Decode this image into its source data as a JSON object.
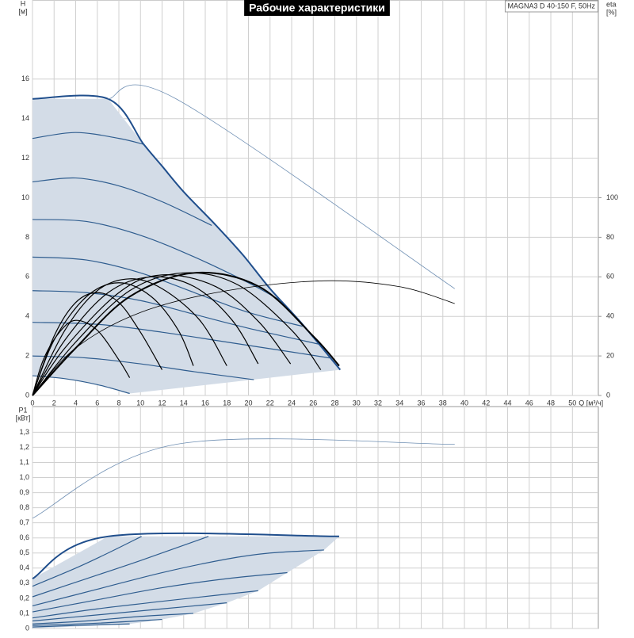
{
  "chart_data": [
    {
      "type": "line",
      "title": "Рабочие характеристики",
      "model": "MAGNA3 D 40-150 F, 50Hz",
      "ylabel": "H",
      "yunit": "[м]",
      "y2label": "eta",
      "y2unit": "[%]",
      "xlabel": "Q [м³/ч]",
      "xlim": [
        0,
        52.4
      ],
      "xticks": [
        0,
        2,
        4,
        6,
        8,
        10,
        12,
        14,
        16,
        18,
        20,
        22,
        24,
        26,
        28,
        30,
        32,
        34,
        36,
        38,
        40,
        42,
        44,
        46,
        48,
        50
      ],
      "ylim": [
        0,
        20
      ],
      "yticks": [
        0,
        2,
        4,
        6,
        8,
        10,
        12,
        14,
        16
      ],
      "y2lim": [
        0,
        200
      ],
      "y2ticks": [
        0,
        20,
        40,
        60,
        80,
        100
      ],
      "grid": true,
      "shade": {
        "color": "#d3dce7",
        "x": [
          0,
          7,
          10.3,
          12,
          14,
          17,
          19.5,
          22,
          25,
          28.5,
          9,
          6,
          3,
          0
        ],
        "values": [
          15,
          15,
          12.7,
          11.6,
          10.3,
          8.6,
          7.1,
          5.4,
          3.6,
          1.3,
          0.1,
          0.55,
          0.85,
          1.0
        ]
      },
      "series": [
        {
          "color": "#1f4e8c",
          "width": 2,
          "x": [
            0,
            7,
            10.3,
            12,
            14,
            17,
            19.5,
            22,
            25,
            28.5
          ],
          "values": [
            15,
            15,
            12.7,
            11.6,
            10.3,
            8.6,
            7.1,
            5.4,
            3.6,
            1.3
          ]
        },
        {
          "color": "#2f5d8f",
          "width": 1.2,
          "x": [
            0,
            4,
            8,
            10.3
          ],
          "values": [
            13,
            13.3,
            13.0,
            12.7
          ]
        },
        {
          "color": "#2f5d8f",
          "width": 1.2,
          "x": [
            0,
            4,
            8,
            12,
            16.6
          ],
          "values": [
            10.8,
            11.0,
            10.6,
            9.8,
            8.6
          ]
        },
        {
          "color": "#2f5d8f",
          "width": 1.2,
          "x": [
            0,
            5,
            10,
            15,
            20,
            23
          ],
          "values": [
            8.9,
            8.8,
            8.1,
            7.0,
            5.7,
            4.8
          ]
        },
        {
          "color": "#2f5d8f",
          "width": 1.2,
          "x": [
            0,
            5,
            10,
            15,
            20,
            25
          ],
          "values": [
            7.0,
            6.85,
            6.2,
            5.2,
            4.2,
            3.5
          ]
        },
        {
          "color": "#2f5d8f",
          "width": 1.2,
          "x": [
            0,
            5,
            10,
            15,
            20,
            26.5
          ],
          "values": [
            5.3,
            5.2,
            4.8,
            4.1,
            3.4,
            2.6
          ]
        },
        {
          "color": "#2f5d8f",
          "width": 1.2,
          "x": [
            0,
            6,
            12,
            18,
            24,
            27.5
          ],
          "values": [
            3.7,
            3.6,
            3.2,
            2.7,
            2.2,
            1.9
          ]
        },
        {
          "color": "#2f5d8f",
          "width": 1.2,
          "x": [
            0,
            5,
            10,
            15,
            20.5
          ],
          "values": [
            2.0,
            1.9,
            1.6,
            1.2,
            0.8
          ]
        },
        {
          "color": "#2f5d8f",
          "width": 1.2,
          "x": [
            0,
            3,
            6,
            9
          ],
          "values": [
            1.0,
            0.85,
            0.55,
            0.1
          ]
        },
        {
          "color": "#6f8fb3",
          "width": 0.8,
          "x": [
            7,
            13.3,
            39.1
          ],
          "values": [
            15,
            15,
            5.4
          ]
        },
        {
          "color": "#000000",
          "width": 0.8,
          "axis": "y2",
          "x": [
            0,
            4,
            10,
            18,
            27,
            34,
            39.1
          ],
          "values": [
            0,
            24,
            42,
            53,
            58,
            55,
            46.5
          ]
        },
        {
          "color": "#000000",
          "width": 1.2,
          "axis": "y2",
          "x": [
            0,
            1,
            2.5,
            4,
            6,
            8,
            9
          ],
          "values": [
            0,
            18,
            32,
            38,
            33,
            18,
            9
          ]
        },
        {
          "color": "#000000",
          "width": 1.2,
          "axis": "y2",
          "x": [
            0,
            2,
            4,
            6,
            8,
            10,
            12
          ],
          "values": [
            0,
            30,
            47,
            52,
            47,
            32,
            13
          ]
        },
        {
          "color": "#000000",
          "width": 1.2,
          "axis": "y2",
          "x": [
            0,
            2,
            5,
            8,
            11,
            13.5,
            14.9
          ],
          "values": [
            0,
            28,
            50,
            57,
            50,
            33,
            15
          ]
        },
        {
          "color": "#000000",
          "width": 1.2,
          "axis": "y2",
          "x": [
            0,
            3,
            6,
            9,
            12,
            15.5,
            18
          ],
          "values": [
            0,
            33,
            53,
            59,
            54,
            38,
            15
          ]
        },
        {
          "color": "#000000",
          "width": 1.2,
          "axis": "y2",
          "x": [
            0,
            3,
            7,
            11,
            15,
            18.5,
            20.9
          ],
          "values": [
            0,
            28,
            52,
            60,
            55,
            38,
            16
          ]
        },
        {
          "color": "#000000",
          "width": 1.2,
          "axis": "y2",
          "x": [
            0,
            3,
            8,
            12,
            17,
            21,
            23.9
          ],
          "values": [
            0,
            24,
            52,
            61,
            55,
            37,
            16
          ]
        },
        {
          "color": "#000000",
          "width": 1.2,
          "axis": "y2",
          "x": [
            0,
            4,
            9,
            14,
            19,
            24,
            26.7
          ],
          "values": [
            0,
            27,
            53,
            62,
            56,
            33,
            13
          ]
        },
        {
          "color": "#000000",
          "width": 2,
          "axis": "y2",
          "x": [
            0,
            4,
            9,
            15,
            21,
            26,
            28.4
          ],
          "values": [
            0,
            24,
            50,
            62,
            55,
            30,
            15
          ]
        }
      ]
    },
    {
      "type": "line",
      "ylabel": "P1",
      "yunit": "[кВт]",
      "xlim": [
        0,
        52.4
      ],
      "xticks": [
        0,
        2,
        4,
        6,
        8,
        10,
        12,
        14,
        16,
        18,
        20,
        22,
        24,
        26,
        28,
        30,
        32,
        34,
        36,
        38,
        40,
        42,
        44,
        46,
        48,
        50
      ],
      "ylim": [
        0,
        1.47
      ],
      "grid": true,
      "yticks": [
        0,
        {
          "value": 0.1,
          "label": "0,1"
        },
        {
          "value": 0.2,
          "label": "0,2"
        },
        {
          "value": 0.3,
          "label": "0,3"
        },
        {
          "value": 0.4,
          "label": "0,4"
        },
        {
          "value": 0.5,
          "label": "0,5"
        },
        {
          "value": 0.6,
          "label": "0,6"
        },
        {
          "value": 0.7,
          "label": "0,7"
        },
        {
          "value": 0.8,
          "label": "0,8"
        },
        {
          "value": 0.9,
          "label": "0,9"
        },
        {
          "value": 1.0,
          "label": "1,0"
        },
        {
          "value": 1.1,
          "label": "1,1"
        },
        {
          "value": 1.2,
          "label": "1,2"
        },
        {
          "value": 1.3,
          "label": "1,3"
        }
      ],
      "shade": {
        "color": "#d3dce7",
        "x": [
          0,
          7,
          28.4,
          27,
          23.6,
          20.9,
          18,
          14.9,
          12,
          9,
          0
        ],
        "values": [
          0.33,
          0.61,
          0.61,
          0.52,
          0.37,
          0.25,
          0.17,
          0.1,
          0.06,
          0.03,
          0
        ]
      },
      "series": [
        {
          "color": "#6f8fb3",
          "width": 0.8,
          "x": [
            0,
            13.3,
            39.1
          ],
          "values": [
            0.73,
            1.22,
            1.22
          ]
        },
        {
          "color": "#1f4e8c",
          "width": 2,
          "x": [
            0,
            7,
            28.4
          ],
          "values": [
            0.33,
            0.61,
            0.61
          ]
        },
        {
          "color": "#2f5d8f",
          "width": 1.2,
          "x": [
            0,
            4,
            7,
            10.1
          ],
          "values": [
            0.28,
            0.4,
            0.5,
            0.61
          ]
        },
        {
          "color": "#2f5d8f",
          "width": 1.2,
          "x": [
            0,
            5,
            10,
            16.3
          ],
          "values": [
            0.21,
            0.33,
            0.45,
            0.61
          ]
        },
        {
          "color": "#2f5d8f",
          "width": 1.2,
          "x": [
            0,
            6,
            12,
            18,
            22,
            27
          ],
          "values": [
            0.15,
            0.26,
            0.37,
            0.46,
            0.5,
            0.52
          ]
        },
        {
          "color": "#2f5d8f",
          "width": 1.2,
          "x": [
            0,
            6,
            12,
            18,
            23.6
          ],
          "values": [
            0.11,
            0.19,
            0.27,
            0.33,
            0.37
          ]
        },
        {
          "color": "#2f5d8f",
          "width": 1.2,
          "x": [
            0,
            6,
            12,
            17,
            20.9
          ],
          "values": [
            0.07,
            0.13,
            0.18,
            0.22,
            0.25
          ]
        },
        {
          "color": "#2f5d8f",
          "width": 1.2,
          "x": [
            0,
            6,
            12,
            18
          ],
          "values": [
            0.05,
            0.09,
            0.13,
            0.17
          ]
        },
        {
          "color": "#2f5d8f",
          "width": 1.2,
          "x": [
            0,
            5,
            10,
            14.9
          ],
          "values": [
            0.03,
            0.05,
            0.08,
            0.1
          ]
        },
        {
          "color": "#2f5d8f",
          "width": 1.2,
          "x": [
            0,
            6,
            12
          ],
          "values": [
            0.02,
            0.035,
            0.06
          ]
        },
        {
          "color": "#2f5d8f",
          "width": 1.2,
          "x": [
            0,
            4,
            9
          ],
          "values": [
            0.01,
            0.02,
            0.03
          ]
        }
      ]
    }
  ]
}
